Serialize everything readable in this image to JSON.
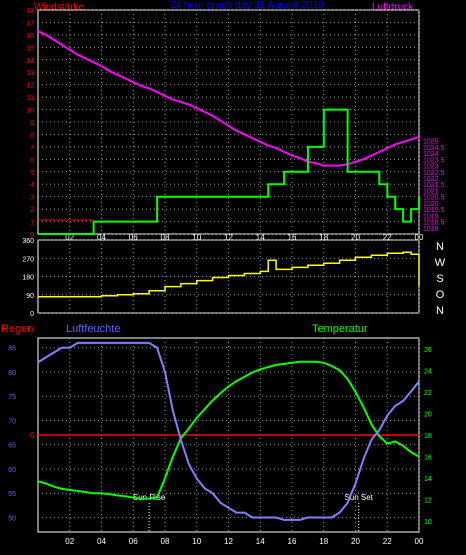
{
  "header": {
    "left_label": "Windstärke",
    "title": "24 hour graph day  31 August 2018",
    "right_label": "Luftdruck"
  },
  "colors": {
    "wind": "#00ff00",
    "pressure": "#ff00ff",
    "direction": "#ffff00",
    "humidity": "#8080ff",
    "temperature": "#00ff00",
    "rain": "#ff0000",
    "grid": "#9a9a9a",
    "frame": "#ffffff",
    "header_left": "#ff0000",
    "header_title": "#0000ff",
    "header_right": "#ff00ff",
    "axis_rain": "#ff0000",
    "axis_humidity": "#6060ff",
    "axis_temp": "#00ff00",
    "sun_marker": "#ffffff"
  },
  "x_ticks": [
    "02",
    "04",
    "06",
    "08",
    "10",
    "12",
    "14",
    "16",
    "18",
    "20",
    "22",
    "00"
  ],
  "chart_data": [
    {
      "type": "line",
      "name": "wind-pressure",
      "x": [
        0,
        0.5,
        1,
        1.5,
        2,
        2.5,
        3,
        3.5,
        4,
        4.5,
        5,
        5.5,
        6,
        6.5,
        7,
        7.5,
        8,
        8.5,
        9,
        9.5,
        10,
        10.5,
        11,
        11.5,
        12,
        12.5,
        13,
        13.5,
        14,
        14.5,
        15,
        15.5,
        16,
        16.5,
        17,
        17.5,
        18,
        18.5,
        19,
        19.5,
        20,
        20.5,
        21,
        21.5,
        22,
        22.5,
        23,
        23.5,
        24
      ],
      "ylim_left": [
        0,
        18
      ],
      "left_ticks": [
        "0",
        "1",
        "2",
        "3",
        "4",
        "5",
        "6",
        "7",
        "8",
        "9",
        "10",
        "11",
        "12",
        "13",
        "14",
        "15",
        "16",
        "17",
        "18"
      ],
      "ylim_right": [
        1017.5,
        1035.5
      ],
      "right_ticks": [
        "1018",
        "1018.5",
        "1019",
        "1019.5",
        "1020",
        "1020.5",
        "1021",
        "1021.5",
        "1022",
        "1022.5",
        "1023",
        "1023.5",
        "1024",
        "1024.5",
        "1025"
      ],
      "series": [
        {
          "name": "Windstärke",
          "axis": "left",
          "step": true,
          "values": [
            0,
            0,
            0,
            0,
            0,
            0,
            0,
            1,
            1,
            1,
            1,
            1,
            1,
            1,
            1,
            3,
            3,
            3,
            3,
            3,
            3,
            3,
            3,
            3,
            3,
            3,
            3,
            3,
            3,
            4,
            4,
            5,
            5,
            5,
            7,
            7,
            10,
            10,
            10,
            5,
            5,
            5,
            5,
            4,
            3,
            2,
            1,
            2,
            3
          ]
        },
        {
          "name": "Luftdruck",
          "axis": "right",
          "values": [
            1033.8,
            1033.5,
            1033.1,
            1032.7,
            1032.3,
            1031.9,
            1031.6,
            1031.3,
            1031,
            1030.6,
            1030.3,
            1030,
            1029.7,
            1029.4,
            1029.2,
            1028.9,
            1028.6,
            1028.3,
            1028.1,
            1027.9,
            1027.6,
            1027.3,
            1027,
            1026.6,
            1026.2,
            1025.8,
            1025.5,
            1025.2,
            1024.9,
            1024.6,
            1024.4,
            1024.1,
            1023.8,
            1023.6,
            1023.3,
            1023.2,
            1023,
            1023,
            1023,
            1023.1,
            1023.3,
            1023.5,
            1023.8,
            1024.1,
            1024.4,
            1024.7,
            1024.9,
            1025.1,
            1025.3
          ]
        }
      ]
    },
    {
      "type": "line",
      "name": "wind-direction",
      "x": [
        0,
        1,
        2,
        3,
        4,
        5,
        6,
        7,
        8,
        9,
        10,
        11,
        12,
        13,
        14,
        14.5,
        15,
        16,
        17,
        18,
        19,
        20,
        21,
        22,
        23,
        23.5,
        24
      ],
      "ylim": [
        0,
        360
      ],
      "left_ticks": [
        "0",
        "90",
        "180",
        "270",
        "360"
      ],
      "right_labels": [
        "N",
        "W",
        "S",
        "O",
        "N"
      ],
      "series": [
        {
          "name": "Windrichtung",
          "values": [
            80,
            80,
            80,
            80,
            85,
            90,
            95,
            110,
            130,
            145,
            160,
            175,
            185,
            195,
            205,
            260,
            215,
            225,
            235,
            245,
            260,
            275,
            285,
            295,
            300,
            290,
            135
          ]
        }
      ]
    },
    {
      "type": "line",
      "name": "humidity-temperature",
      "x": [
        0,
        0.5,
        1,
        1.5,
        2,
        2.5,
        3,
        3.5,
        4,
        4.5,
        5,
        5.5,
        6,
        6.5,
        7,
        7.5,
        8,
        8.5,
        9,
        9.5,
        10,
        10.5,
        11,
        11.5,
        12,
        12.5,
        13,
        13.5,
        14,
        14.5,
        15,
        15.5,
        16,
        16.5,
        17,
        17.5,
        18,
        18.5,
        19,
        19.5,
        20,
        20.5,
        21,
        21.5,
        22,
        22.5,
        23,
        23.5,
        24
      ],
      "labels": {
        "left": "Regen",
        "middle": "Luftfeuchte",
        "right": "Temperatur",
        "rain_value": "0"
      },
      "ylim_left": [
        47,
        87
      ],
      "left_ticks": [
        "50",
        "55",
        "60",
        "65",
        "70",
        "75",
        "80",
        "85"
      ],
      "ylim_right": [
        9,
        27
      ],
      "right_ticks": [
        "10",
        "12",
        "14",
        "16",
        "18",
        "20",
        "22",
        "24",
        "26"
      ],
      "rain_level": 0,
      "annotations": [
        {
          "label": "Sun Rise",
          "x": 7.0
        },
        {
          "label": "Sun Set",
          "x": 20.2
        }
      ],
      "series": [
        {
          "name": "Luftfeuchte",
          "axis": "left",
          "values": [
            82,
            83,
            84,
            85,
            85,
            86,
            86,
            86,
            86,
            86,
            86,
            86,
            86,
            86,
            86,
            85,
            80,
            72,
            66,
            61,
            58,
            56,
            55,
            53,
            52,
            51,
            51,
            50,
            50,
            50,
            50,
            49.5,
            49.5,
            49.5,
            50,
            50,
            50,
            50,
            51,
            53,
            57,
            62,
            66,
            68,
            71,
            73,
            74,
            76,
            78
          ]
        },
        {
          "name": "Temperatur",
          "axis": "right",
          "values": [
            13.7,
            13.5,
            13.2,
            13,
            12.9,
            12.8,
            12.7,
            12.6,
            12.6,
            12.5,
            12.4,
            12.3,
            12.2,
            12.1,
            12.1,
            12.2,
            14,
            16,
            17.7,
            18.6,
            19.6,
            20.4,
            21.2,
            21.9,
            22.5,
            23,
            23.4,
            23.8,
            24.1,
            24.3,
            24.5,
            24.6,
            24.7,
            24.8,
            24.8,
            24.8,
            24.7,
            24.4,
            24,
            23.2,
            22,
            20.6,
            19,
            17.9,
            17.2,
            17.4,
            17,
            16.4,
            16
          ]
        }
      ]
    }
  ]
}
